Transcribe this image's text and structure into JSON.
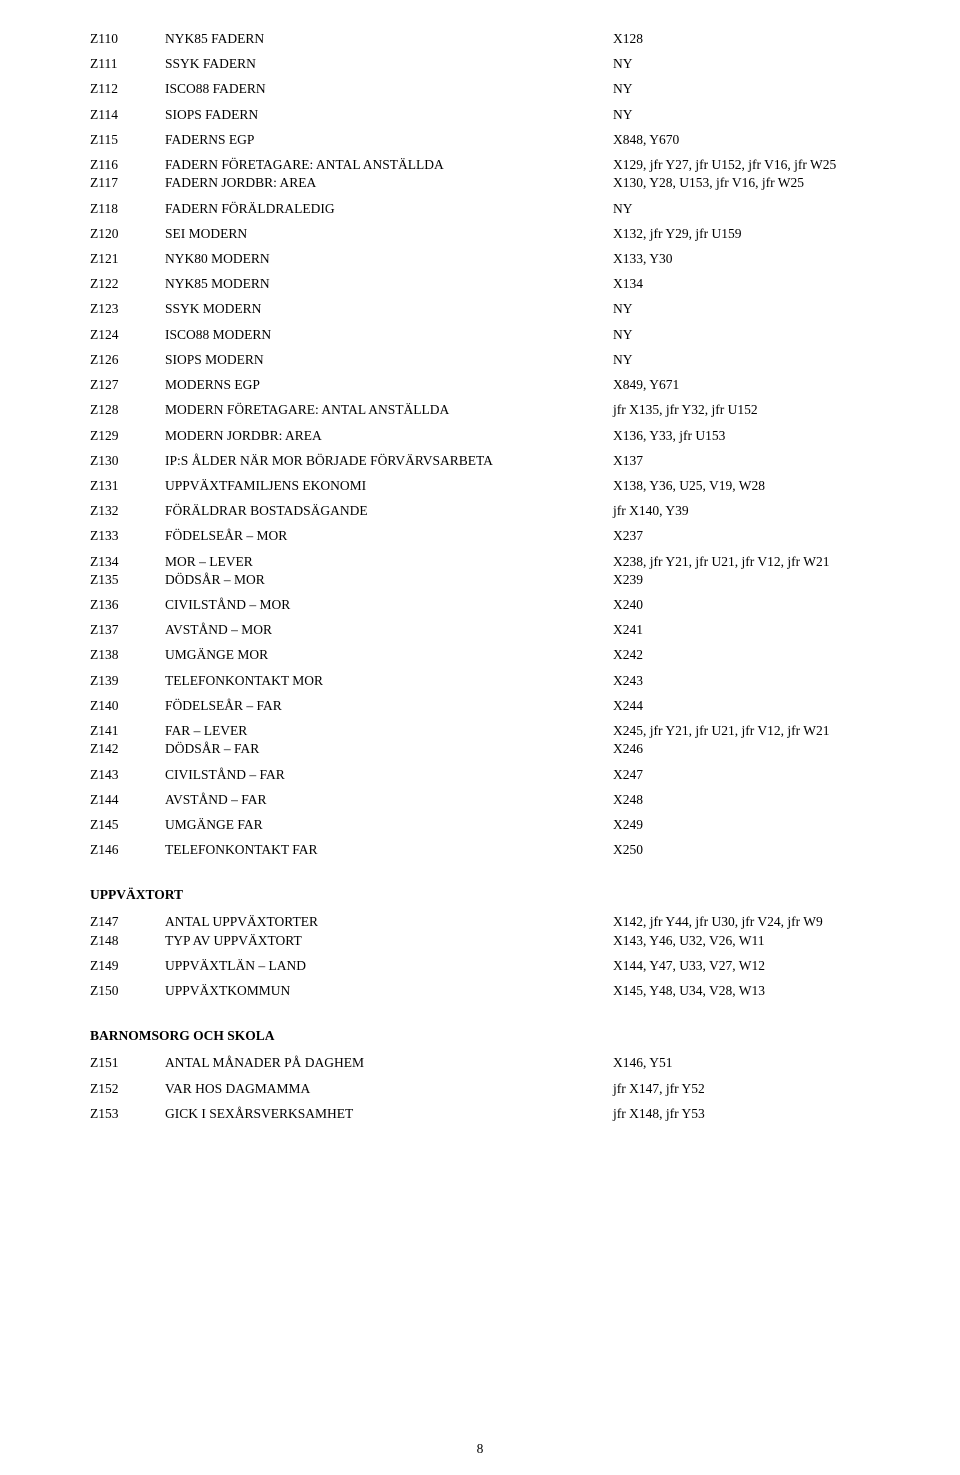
{
  "page_number": "8",
  "blocks": [
    {
      "type": "rows",
      "rows": [
        {
          "code": "Z110",
          "desc": "NYK85 FADERN",
          "ref": "X128"
        },
        {
          "code": "Z111",
          "desc": "SSYK FADERN",
          "ref": "NY"
        },
        {
          "code": "Z112",
          "desc": "ISCO88 FADERN",
          "ref": "NY"
        },
        {
          "code": "Z114",
          "desc": "SIOPS FADERN",
          "ref": "NY"
        },
        {
          "code": "Z115",
          "desc": "FADERNS EGP",
          "ref": "X848, Y670"
        },
        {
          "code": "Z116",
          "desc": "FADERN FÖRETAGARE: ANTAL ANSTÄLLDA",
          "ref": "X129, jfr Y27, jfr U152, jfr V16, jfr W25",
          "tight": true
        },
        {
          "code": "Z117",
          "desc": "FADERN JORDBR: AREA",
          "ref": "X130, Y28, U153, jfr V16, jfr W25"
        },
        {
          "code": "Z118",
          "desc": "FADERN FÖRÄLDRALEDIG",
          "ref": "NY"
        },
        {
          "code": "Z120",
          "desc": "SEI MODERN",
          "ref": "X132, jfr Y29, jfr U159"
        },
        {
          "code": "Z121",
          "desc": "NYK80 MODERN",
          "ref": "X133, Y30"
        },
        {
          "code": "Z122",
          "desc": "NYK85 MODERN",
          "ref": "X134"
        },
        {
          "code": "Z123",
          "desc": "SSYK MODERN",
          "ref": "NY"
        },
        {
          "code": "Z124",
          "desc": "ISCO88 MODERN",
          "ref": "NY"
        },
        {
          "code": "Z126",
          "desc": "SIOPS MODERN",
          "ref": "NY"
        },
        {
          "code": "Z127",
          "desc": "MODERNS EGP",
          "ref": "X849, Y671"
        },
        {
          "code": "Z128",
          "desc": "MODERN FÖRETAGARE: ANTAL ANSTÄLLDA",
          "ref": "jfr X135, jfr Y32, jfr U152"
        },
        {
          "code": "Z129",
          "desc": "MODERN JORDBR: AREA",
          "ref": "X136, Y33, jfr U153"
        },
        {
          "code": "Z130",
          "desc": "IP:S ÅLDER NÄR MOR BÖRJADE FÖRVÄRVSARBETA",
          "ref": "X137"
        },
        {
          "code": "Z131",
          "desc": "UPPVÄXTFAMILJENS EKONOMI",
          "ref": "X138, Y36, U25, V19, W28"
        },
        {
          "code": "Z132",
          "desc": "FÖRÄLDRAR BOSTADSÄGANDE",
          "ref": "jfr X140, Y39"
        },
        {
          "code": "Z133",
          "desc": "FÖDELSEÅR – MOR",
          "ref": "X237"
        },
        {
          "code": "Z134",
          "desc": "MOR – LEVER",
          "ref": "X238, jfr Y21, jfr U21, jfr V12, jfr W21",
          "tight": true
        },
        {
          "code": "Z135",
          "desc": "DÖDSÅR – MOR",
          "ref": "X239"
        },
        {
          "code": "Z136",
          "desc": "CIVILSTÅND – MOR",
          "ref": "X240"
        },
        {
          "code": "Z137",
          "desc": "AVSTÅND – MOR",
          "ref": "X241"
        },
        {
          "code": "Z138",
          "desc": "UMGÄNGE MOR",
          "ref": "X242"
        },
        {
          "code": "Z139",
          "desc": "TELEFONKONTAKT MOR",
          "ref": "X243"
        },
        {
          "code": "Z140",
          "desc": "FÖDELSEÅR – FAR",
          "ref": "X244"
        },
        {
          "code": "Z141",
          "desc": "FAR – LEVER",
          "ref": "X245, jfr Y21, jfr U21, jfr V12, jfr W21",
          "tight": true
        },
        {
          "code": "Z142",
          "desc": "DÖDSÅR – FAR",
          "ref": "X246"
        },
        {
          "code": "Z143",
          "desc": "CIVILSTÅND – FAR",
          "ref": "X247"
        },
        {
          "code": "Z144",
          "desc": "AVSTÅND – FAR",
          "ref": "X248"
        },
        {
          "code": "Z145",
          "desc": "UMGÄNGE FAR",
          "ref": "X249"
        },
        {
          "code": "Z146",
          "desc": "TELEFONKONTAKT FAR",
          "ref": "X250"
        }
      ]
    },
    {
      "type": "section",
      "title": "UPPVÄXTORT"
    },
    {
      "type": "rows",
      "rows": [
        {
          "code": "Z147",
          "desc": "ANTAL UPPVÄXTORTER",
          "ref": "X142, jfr Y44, jfr U30, jfr V24, jfr W9",
          "tight": true
        },
        {
          "code": "Z148",
          "desc": "TYP AV UPPVÄXTORT",
          "ref": "X143, Y46, U32, V26, W11"
        },
        {
          "code": "Z149",
          "desc": "UPPVÄXTLÄN – LAND",
          "ref": "X144, Y47, U33, V27, W12"
        },
        {
          "code": "Z150",
          "desc": "UPPVÄXTKOMMUN",
          "ref": "X145, Y48, U34, V28, W13"
        }
      ]
    },
    {
      "type": "section",
      "title": "BARNOMSORG OCH SKOLA"
    },
    {
      "type": "rows",
      "rows": [
        {
          "code": "Z151",
          "desc": "ANTAL MÅNADER PÅ DAGHEM",
          "ref": "X146, Y51"
        },
        {
          "code": "Z152",
          "desc": "VAR HOS DAGMAMMA",
          "ref": "jfr X147, jfr Y52"
        },
        {
          "code": "Z153",
          "desc": "GICK I SEXÅRSVERKSAMHET",
          "ref": "jfr X148, jfr Y53"
        }
      ]
    }
  ]
}
